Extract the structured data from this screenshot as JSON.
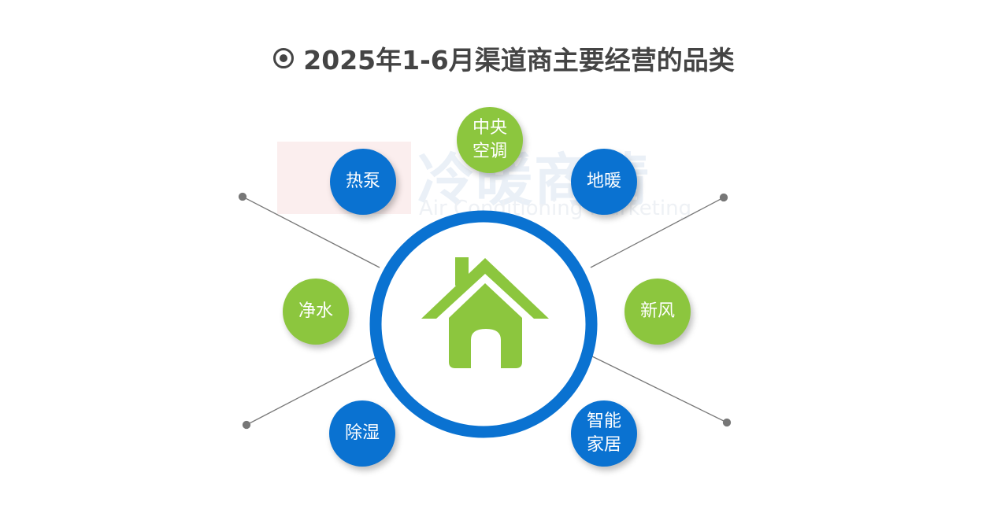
{
  "title": "2025年1-6月渠道商主要经营的品类",
  "title_icon": "radio-target-icon",
  "watermark": {
    "zh": "冷暖商情",
    "en": "Air Conditioning Marketing"
  },
  "center_icon": "house-icon",
  "colors": {
    "blue": "#0a72d1",
    "green": "#8cc63e",
    "title": "#444444"
  },
  "categories": [
    {
      "label": "中央空调",
      "line1": "中央",
      "line2": "空调",
      "color": "green"
    },
    {
      "label": "热泵",
      "color": "blue"
    },
    {
      "label": "地暖",
      "color": "blue"
    },
    {
      "label": "净水",
      "color": "green"
    },
    {
      "label": "新风",
      "color": "green"
    },
    {
      "label": "除湿",
      "color": "blue"
    },
    {
      "label": "智能家居",
      "line1": "智能",
      "line2": "家居",
      "color": "blue"
    }
  ]
}
